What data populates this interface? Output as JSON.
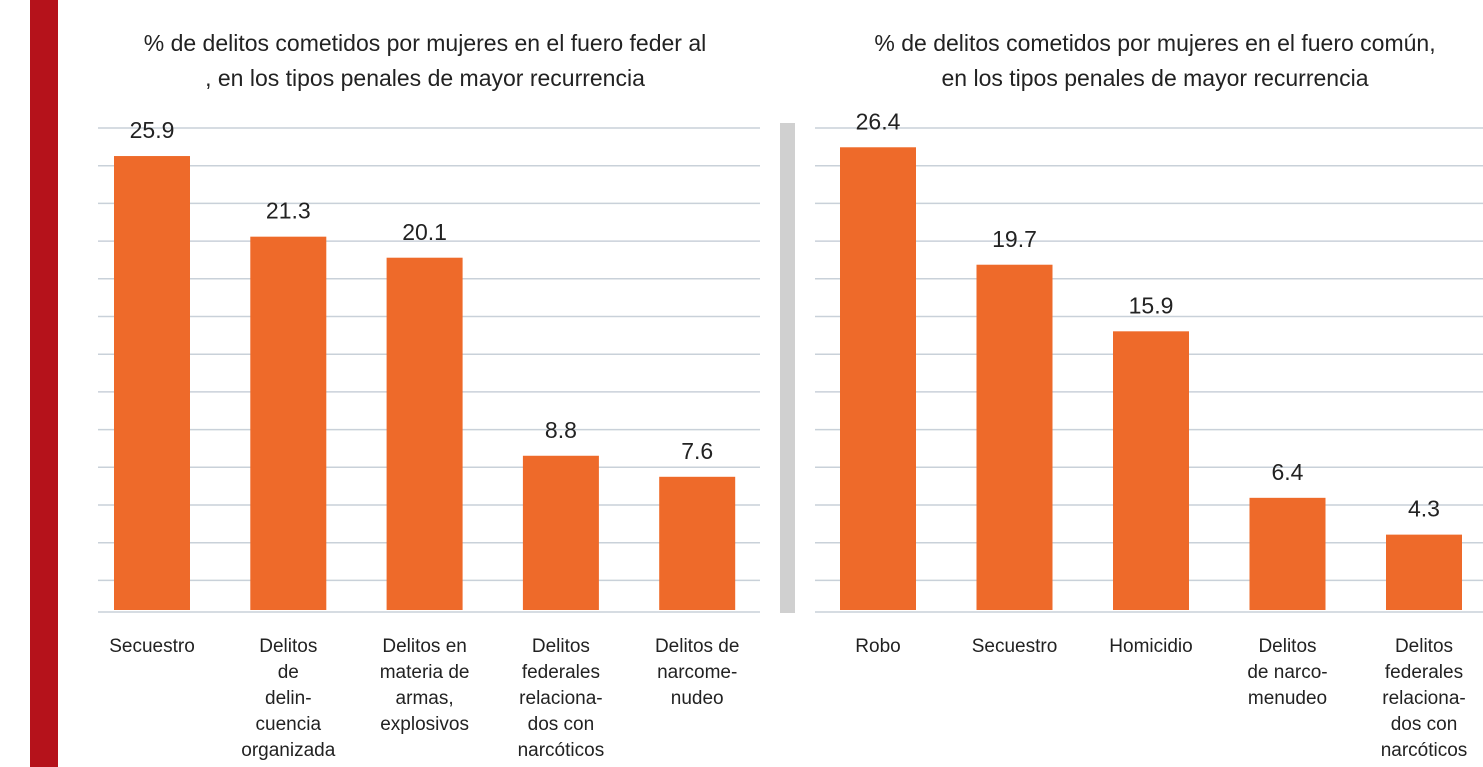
{
  "chart_data": [
    {
      "type": "bar",
      "title": [
        "% de delitos cometidos por mujeres en el fuero feder al",
        ", en los tipos penales de mayor recurrencia"
      ],
      "categories": [
        [
          "Secuestro"
        ],
        [
          "Delitos",
          "de",
          "delin-",
          "cuencia",
          "organizada"
        ],
        [
          "Delitos en",
          "materia de",
          "armas,",
          "explosivos"
        ],
        [
          "Delitos",
          "federales",
          "relaciona-",
          "dos con",
          "narcóticos"
        ],
        [
          "Delitos de",
          "narcome-",
          "nudeo"
        ]
      ],
      "values": [
        25.9,
        21.3,
        20.1,
        8.8,
        7.6
      ],
      "color": "#ee6a2a",
      "ylim": [
        0,
        27.5
      ],
      "grid": true
    },
    {
      "type": "bar",
      "title": [
        "% de delitos cometidos por mujeres en el fuero común,",
        "en los tipos penales de mayor recurrencia"
      ],
      "categories": [
        [
          "Robo"
        ],
        [
          "Secuestro"
        ],
        [
          "Homicidio"
        ],
        [
          "Delitos",
          "de narco-",
          "menudeo"
        ],
        [
          "Delitos",
          "federales",
          "relaciona-",
          "dos con",
          "narcóticos"
        ]
      ],
      "values": [
        26.4,
        19.7,
        15.9,
        6.4,
        4.3
      ],
      "color": "#ee6a2a",
      "ylim": [
        0,
        27.5
      ],
      "grid": true
    }
  ]
}
